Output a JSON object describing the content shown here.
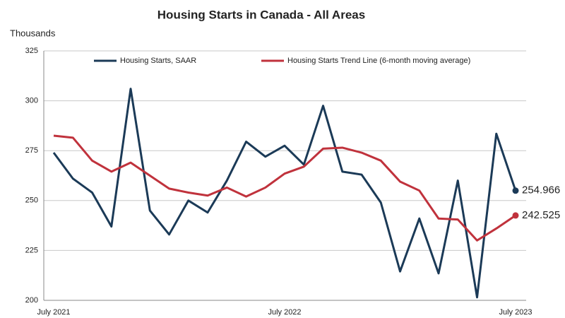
{
  "chart_data": {
    "type": "line",
    "title": "Housing Starts in Canada - All Areas",
    "y_axis_label": "Thousands",
    "categories": [
      "July 2021",
      null,
      null,
      null,
      null,
      null,
      null,
      null,
      null,
      null,
      null,
      null,
      "July 2022",
      null,
      null,
      null,
      null,
      null,
      null,
      null,
      null,
      null,
      null,
      null,
      "July 2023"
    ],
    "series": [
      {
        "name": "Housing Starts, SAAR",
        "color": "#1b3a57",
        "values": [
          274,
          261,
          254,
          237,
          306,
          245,
          233,
          250,
          244,
          260,
          279.5,
          272,
          277.5,
          268,
          297.5,
          264.5,
          263,
          249,
          214.5,
          241,
          213.5,
          260,
          201.5,
          283.5,
          254.966
        ]
      },
      {
        "name": "Housing Starts Trend Line (6-month moving average)",
        "color": "#c0323c",
        "values": [
          282.5,
          281.5,
          270,
          264.5,
          269,
          262.5,
          256,
          254,
          252.5,
          256.5,
          252,
          256.5,
          263.5,
          267,
          276,
          276.5,
          274,
          270,
          259.5,
          255,
          241,
          240.5,
          230,
          236,
          242.525
        ]
      }
    ],
    "ylim": [
      200,
      325
    ],
    "yticks": [
      200,
      225,
      250,
      275,
      300,
      325
    ],
    "grid": true
  }
}
